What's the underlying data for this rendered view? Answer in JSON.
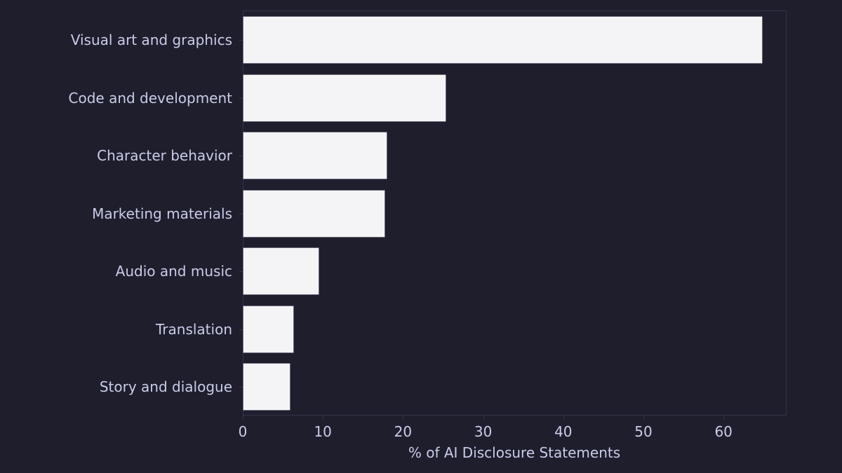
{
  "chart_data": {
    "type": "bar",
    "orientation": "horizontal",
    "title": "",
    "xlabel": "% of AI Disclosure Statements",
    "ylabel": "",
    "categories": [
      "Visual art and graphics",
      "Code and development",
      "Character behavior",
      "Marketing materials",
      "Audio and music",
      "Translation",
      "Story and dialogue"
    ],
    "values": [
      64.7,
      25.2,
      17.9,
      17.6,
      9.4,
      6.2,
      5.8
    ],
    "xlim": [
      0,
      67.9
    ],
    "xticks": [
      0,
      10,
      20,
      30,
      40,
      50,
      60
    ],
    "grid": false,
    "legend": null,
    "colors": {
      "background": "#1f1e2d",
      "bar": "#f4f4f7",
      "text": "#c9cde8",
      "axis": "#35344a"
    }
  }
}
